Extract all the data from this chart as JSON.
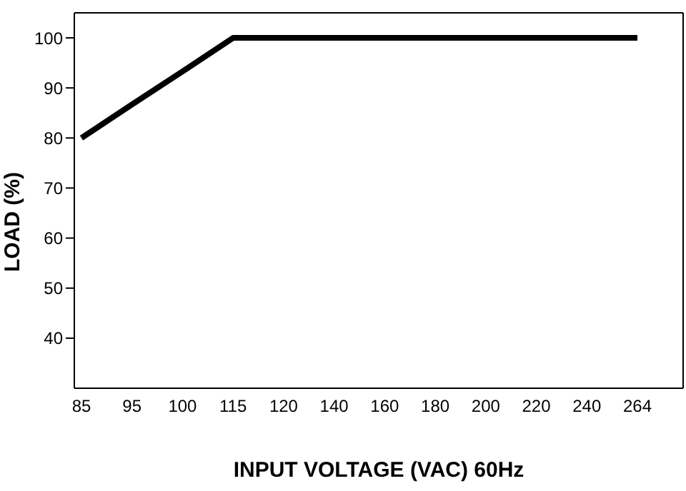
{
  "chart_data": {
    "type": "line",
    "xlabel": "INPUT VOLTAGE (VAC) 60Hz",
    "ylabel": "LOAD (%)",
    "categories": [
      "85",
      "95",
      "100",
      "115",
      "120",
      "140",
      "160",
      "180",
      "200",
      "220",
      "240",
      "264"
    ],
    "series": [
      {
        "color": "#000000",
        "values": [
          80,
          86.7,
          93.3,
          100,
          100,
          100,
          100,
          100,
          100,
          100,
          100,
          100
        ]
      }
    ],
    "ylim": [
      30,
      105
    ],
    "yticks": [
      40,
      50,
      60,
      70,
      80,
      90,
      100
    ],
    "grid": false,
    "marker": "none",
    "line_style": "solid"
  }
}
